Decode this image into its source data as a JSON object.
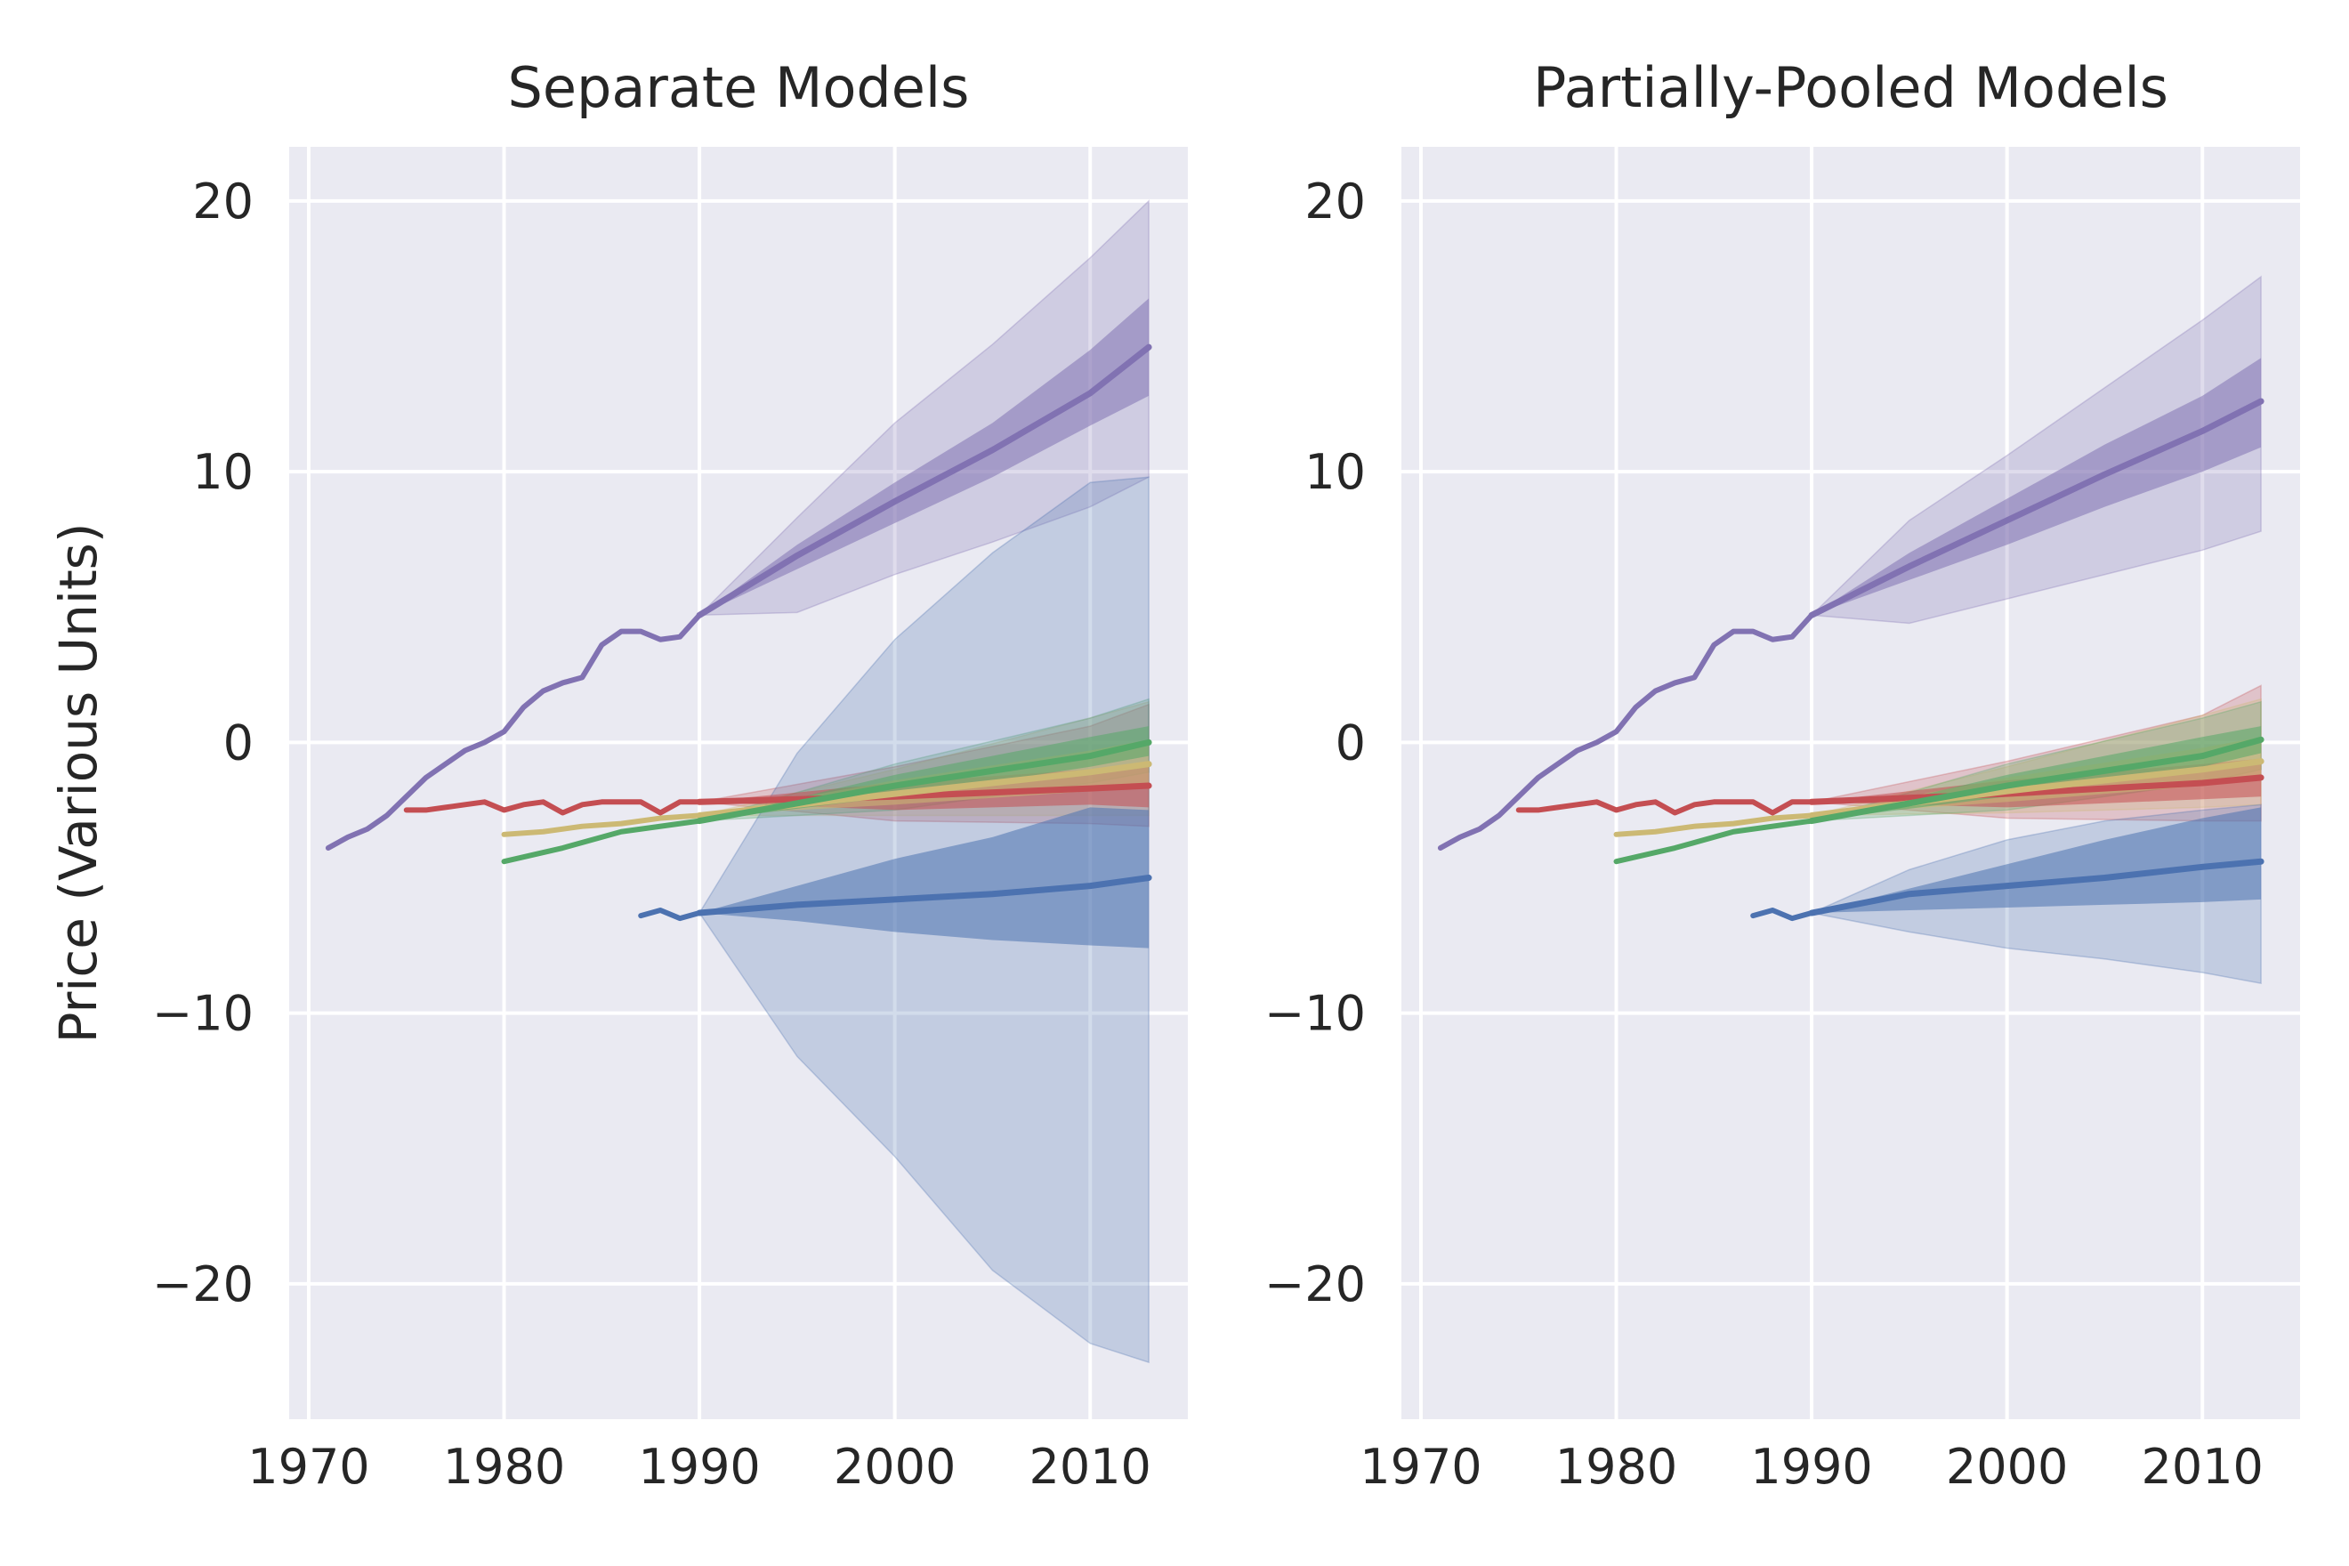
{
  "figure": {
    "ylabel": "Price (Various Units)"
  },
  "chart_data": [
    {
      "type": "line",
      "title": "Separate Models",
      "xlabel": "",
      "ylabel": "Price (Various Units)",
      "xlim": [
        1969,
        2015
      ],
      "ylim": [
        -25,
        22
      ],
      "xticks": [
        1970,
        1980,
        1990,
        2000,
        2010
      ],
      "yticks": [
        20,
        10,
        0,
        -10,
        -20
      ],
      "grid": true,
      "legend": "none",
      "colors": {
        "purple": "#8172b2",
        "red": "#c44e52",
        "yellow": "#ccb974",
        "green": "#55a868",
        "blue": "#4c72b0",
        "background": "#eaeaf2"
      },
      "series": [
        {
          "color": "purple",
          "observed": {
            "x": [
              1971,
              1972,
              1973,
              1974,
              1975,
              1976,
              1977,
              1978,
              1979,
              1980,
              1981,
              1982,
              1983,
              1984,
              1985,
              1986,
              1987,
              1988,
              1989,
              1990
            ],
            "y": [
              -3.9,
              -3.5,
              -3.2,
              -2.7,
              -2.0,
              -1.3,
              -0.8,
              -0.3,
              0.0,
              0.4,
              1.3,
              1.9,
              2.2,
              2.4,
              3.6,
              4.1,
              4.1,
              3.8,
              3.9,
              4.7
            ]
          },
          "forecast": {
            "x": [
              1990,
              1995,
              2000,
              2005,
              2010,
              2013
            ],
            "mean": [
              4.7,
              6.9,
              8.9,
              10.8,
              12.9,
              14.6
            ],
            "inner": [
              [
                4.7,
                4.7
              ],
              [
                6.4,
                7.3
              ],
              [
                8.1,
                9.6
              ],
              [
                9.8,
                11.8
              ],
              [
                11.7,
                14.5
              ],
              [
                12.8,
                16.4
              ]
            ],
            "outer": [
              [
                4.7,
                4.7
              ],
              [
                4.8,
                8.3
              ],
              [
                6.2,
                11.8
              ],
              [
                7.4,
                14.7
              ],
              [
                8.7,
                17.9
              ],
              [
                9.8,
                20.0
              ]
            ]
          }
        },
        {
          "color": "red",
          "observed": {
            "x": [
              1975,
              1976,
              1977,
              1978,
              1979,
              1980,
              1981,
              1982,
              1983,
              1984,
              1985,
              1986,
              1987,
              1988,
              1989,
              1990
            ],
            "y": [
              -2.5,
              -2.5,
              -2.4,
              -2.3,
              -2.2,
              -2.5,
              -2.3,
              -2.2,
              -2.6,
              -2.3,
              -2.2,
              -2.2,
              -2.2,
              -2.6,
              -2.2,
              -2.2
            ]
          },
          "forecast": {
            "x": [
              1990,
              2000,
              2010,
              2013
            ],
            "mean": [
              -2.2,
              -2.0,
              -1.7,
              -1.6
            ],
            "inner": [
              [
                -2.2,
                -2.2
              ],
              [
                -2.5,
                -1.5
              ],
              [
                -2.3,
                -1.0
              ],
              [
                -2.4,
                -0.9
              ]
            ],
            "outer": [
              [
                -2.2,
                -2.2
              ],
              [
                -2.9,
                -0.9
              ],
              [
                -3.0,
                0.6
              ],
              [
                -3.1,
                1.4
              ]
            ]
          }
        },
        {
          "color": "yellow",
          "observed": {
            "x": [
              1980,
              1982,
              1984,
              1986,
              1988,
              1990
            ],
            "y": [
              -3.4,
              -3.3,
              -3.1,
              -3.0,
              -2.8,
              -2.7
            ]
          },
          "forecast": {
            "x": [
              1990,
              2000,
              2010,
              2013
            ],
            "mean": [
              -2.7,
              -1.9,
              -1.1,
              -0.8
            ],
            "inner": [
              [
                -2.7,
                -2.7
              ],
              [
                -2.3,
                -1.4
              ],
              [
                -1.8,
                -0.3
              ],
              [
                -1.6,
                0.1
              ]
            ],
            "outer": [
              [
                -2.7,
                -2.7
              ],
              [
                -2.7,
                -1.0
              ],
              [
                -2.7,
                0.9
              ],
              [
                -2.7,
                1.5
              ]
            ]
          }
        },
        {
          "color": "green",
          "observed": {
            "x": [
              1980,
              1983,
              1986,
              1990
            ],
            "y": [
              -4.4,
              -3.9,
              -3.3,
              -2.9
            ]
          },
          "forecast": {
            "x": [
              1990,
              2000,
              2010,
              2013
            ],
            "mean": [
              -2.9,
              -1.6,
              -0.5,
              0.0
            ],
            "inner": [
              [
                -2.9,
                -2.9
              ],
              [
                -2.0,
                -1.2
              ],
              [
                -0.9,
                0.2
              ],
              [
                -0.5,
                0.6
              ]
            ],
            "outer": [
              [
                -2.9,
                -2.9
              ],
              [
                -2.5,
                -0.8
              ],
              [
                -1.5,
                0.9
              ],
              [
                -1.1,
                1.6
              ]
            ]
          }
        },
        {
          "color": "blue",
          "observed": {
            "x": [
              1987,
              1988,
              1989,
              1990
            ],
            "y": [
              -6.4,
              -6.2,
              -6.5,
              -6.3
            ]
          },
          "forecast": {
            "x": [
              1990,
              1995,
              2000,
              2005,
              2010,
              2013
            ],
            "mean": [
              -6.3,
              -6.0,
              -5.8,
              -5.6,
              -5.3,
              -5.0
            ],
            "inner": [
              [
                -6.3,
                -6.3
              ],
              [
                -6.6,
                -5.3
              ],
              [
                -7.0,
                -4.3
              ],
              [
                -7.3,
                -3.5
              ],
              [
                -7.5,
                -2.4
              ],
              [
                -7.6,
                -2.5
              ]
            ],
            "outer": [
              [
                -6.3,
                -6.3
              ],
              [
                -11.6,
                -0.4
              ],
              [
                -15.3,
                3.8
              ],
              [
                -19.5,
                7.0
              ],
              [
                -22.2,
                9.6
              ],
              [
                -22.9,
                9.8
              ]
            ]
          }
        }
      ]
    },
    {
      "type": "line",
      "title": "Partially-Pooled Models",
      "xlabel": "",
      "ylabel": "",
      "xlim": [
        1969,
        2015
      ],
      "ylim": [
        -25,
        22
      ],
      "xticks": [
        1970,
        1980,
        1990,
        2000,
        2010
      ],
      "yticks": [
        20,
        10,
        0,
        -10,
        -20
      ],
      "grid": true,
      "legend": "none",
      "colors": {
        "purple": "#8172b2",
        "red": "#c44e52",
        "yellow": "#ccb974",
        "green": "#55a868",
        "blue": "#4c72b0",
        "background": "#eaeaf2"
      },
      "series": [
        {
          "color": "purple",
          "observed": {
            "x": [
              1971,
              1972,
              1973,
              1974,
              1975,
              1976,
              1977,
              1978,
              1979,
              1980,
              1981,
              1982,
              1983,
              1984,
              1985,
              1986,
              1987,
              1988,
              1989,
              1990
            ],
            "y": [
              -3.9,
              -3.5,
              -3.2,
              -2.7,
              -2.0,
              -1.3,
              -0.8,
              -0.3,
              0.0,
              0.4,
              1.3,
              1.9,
              2.2,
              2.4,
              3.6,
              4.1,
              4.1,
              3.8,
              3.9,
              4.7
            ]
          },
          "forecast": {
            "x": [
              1990,
              1995,
              2000,
              2005,
              2010,
              2013
            ],
            "mean": [
              4.7,
              6.5,
              8.2,
              9.9,
              11.5,
              12.6
            ],
            "inner": [
              [
                4.7,
                4.7
              ],
              [
                6.0,
                7.0
              ],
              [
                7.3,
                9.0
              ],
              [
                8.7,
                11.0
              ],
              [
                10.0,
                12.8
              ],
              [
                10.9,
                14.2
              ]
            ],
            "outer": [
              [
                4.7,
                4.7
              ],
              [
                4.4,
                8.2
              ],
              [
                5.3,
                10.6
              ],
              [
                6.2,
                13.1
              ],
              [
                7.1,
                15.6
              ],
              [
                7.8,
                17.2
              ]
            ]
          }
        },
        {
          "color": "red",
          "observed": {
            "x": [
              1975,
              1976,
              1977,
              1978,
              1979,
              1980,
              1981,
              1982,
              1983,
              1984,
              1985,
              1986,
              1987,
              1988,
              1989,
              1990
            ],
            "y": [
              -2.5,
              -2.5,
              -2.4,
              -2.3,
              -2.2,
              -2.5,
              -2.3,
              -2.2,
              -2.6,
              -2.3,
              -2.2,
              -2.2,
              -2.2,
              -2.6,
              -2.2,
              -2.2
            ]
          },
          "forecast": {
            "x": [
              1990,
              2000,
              2010,
              2013
            ],
            "mean": [
              -2.2,
              -1.9,
              -1.5,
              -1.3
            ],
            "inner": [
              [
                -2.2,
                -2.2
              ],
              [
                -2.4,
                -1.4
              ],
              [
                -2.1,
                -0.8
              ],
              [
                -2.0,
                -0.6
              ]
            ],
            "outer": [
              [
                -2.2,
                -2.2
              ],
              [
                -2.8,
                -0.7
              ],
              [
                -2.9,
                1.0
              ],
              [
                -2.9,
                2.1
              ]
            ]
          }
        },
        {
          "color": "yellow",
          "observed": {
            "x": [
              1980,
              1982,
              1984,
              1986,
              1988,
              1990
            ],
            "y": [
              -3.4,
              -3.3,
              -3.1,
              -3.0,
              -2.8,
              -2.7
            ]
          },
          "forecast": {
            "x": [
              1990,
              2000,
              2010,
              2013
            ],
            "mean": [
              -2.7,
              -1.8,
              -1.0,
              -0.7
            ],
            "inner": [
              [
                -2.7,
                -2.7
              ],
              [
                -2.2,
                -1.3
              ],
              [
                -1.6,
                -0.2
              ],
              [
                -1.4,
                0.2
              ]
            ],
            "outer": [
              [
                -2.7,
                -2.7
              ],
              [
                -2.6,
                -0.9
              ],
              [
                -2.4,
                1.0
              ],
              [
                -2.3,
                1.6
              ]
            ]
          }
        },
        {
          "color": "green",
          "observed": {
            "x": [
              1980,
              1983,
              1986,
              1990
            ],
            "y": [
              -4.4,
              -3.9,
              -3.3,
              -2.9
            ]
          },
          "forecast": {
            "x": [
              1990,
              2000,
              2010,
              2013
            ],
            "mean": [
              -2.9,
              -1.6,
              -0.5,
              0.1
            ],
            "inner": [
              [
                -2.9,
                -2.9
              ],
              [
                -2.0,
                -1.2
              ],
              [
                -0.9,
                0.2
              ],
              [
                -0.4,
                0.6
              ]
            ],
            "outer": [
              [
                -2.9,
                -2.9
              ],
              [
                -2.5,
                -0.8
              ],
              [
                -1.5,
                0.9
              ],
              [
                -1.0,
                1.5
              ]
            ]
          }
        },
        {
          "color": "blue",
          "observed": {
            "x": [
              1987,
              1988,
              1989,
              1990
            ],
            "y": [
              -6.4,
              -6.2,
              -6.5,
              -6.3
            ]
          },
          "forecast": {
            "x": [
              1990,
              1995,
              2000,
              2005,
              2010,
              2013
            ],
            "mean": [
              -6.3,
              -5.6,
              -5.3,
              -5.0,
              -4.6,
              -4.4
            ],
            "inner": [
              [
                -6.3,
                -6.3
              ],
              [
                -6.2,
                -5.4
              ],
              [
                -6.1,
                -4.5
              ],
              [
                -6.0,
                -3.6
              ],
              [
                -5.9,
                -2.8
              ],
              [
                -5.8,
                -2.4
              ]
            ],
            "outer": [
              [
                -6.3,
                -6.3
              ],
              [
                -7.0,
                -4.7
              ],
              [
                -7.6,
                -3.6
              ],
              [
                -8.0,
                -2.9
              ],
              [
                -8.5,
                -2.5
              ],
              [
                -8.9,
                -2.3
              ]
            ]
          }
        }
      ]
    }
  ]
}
